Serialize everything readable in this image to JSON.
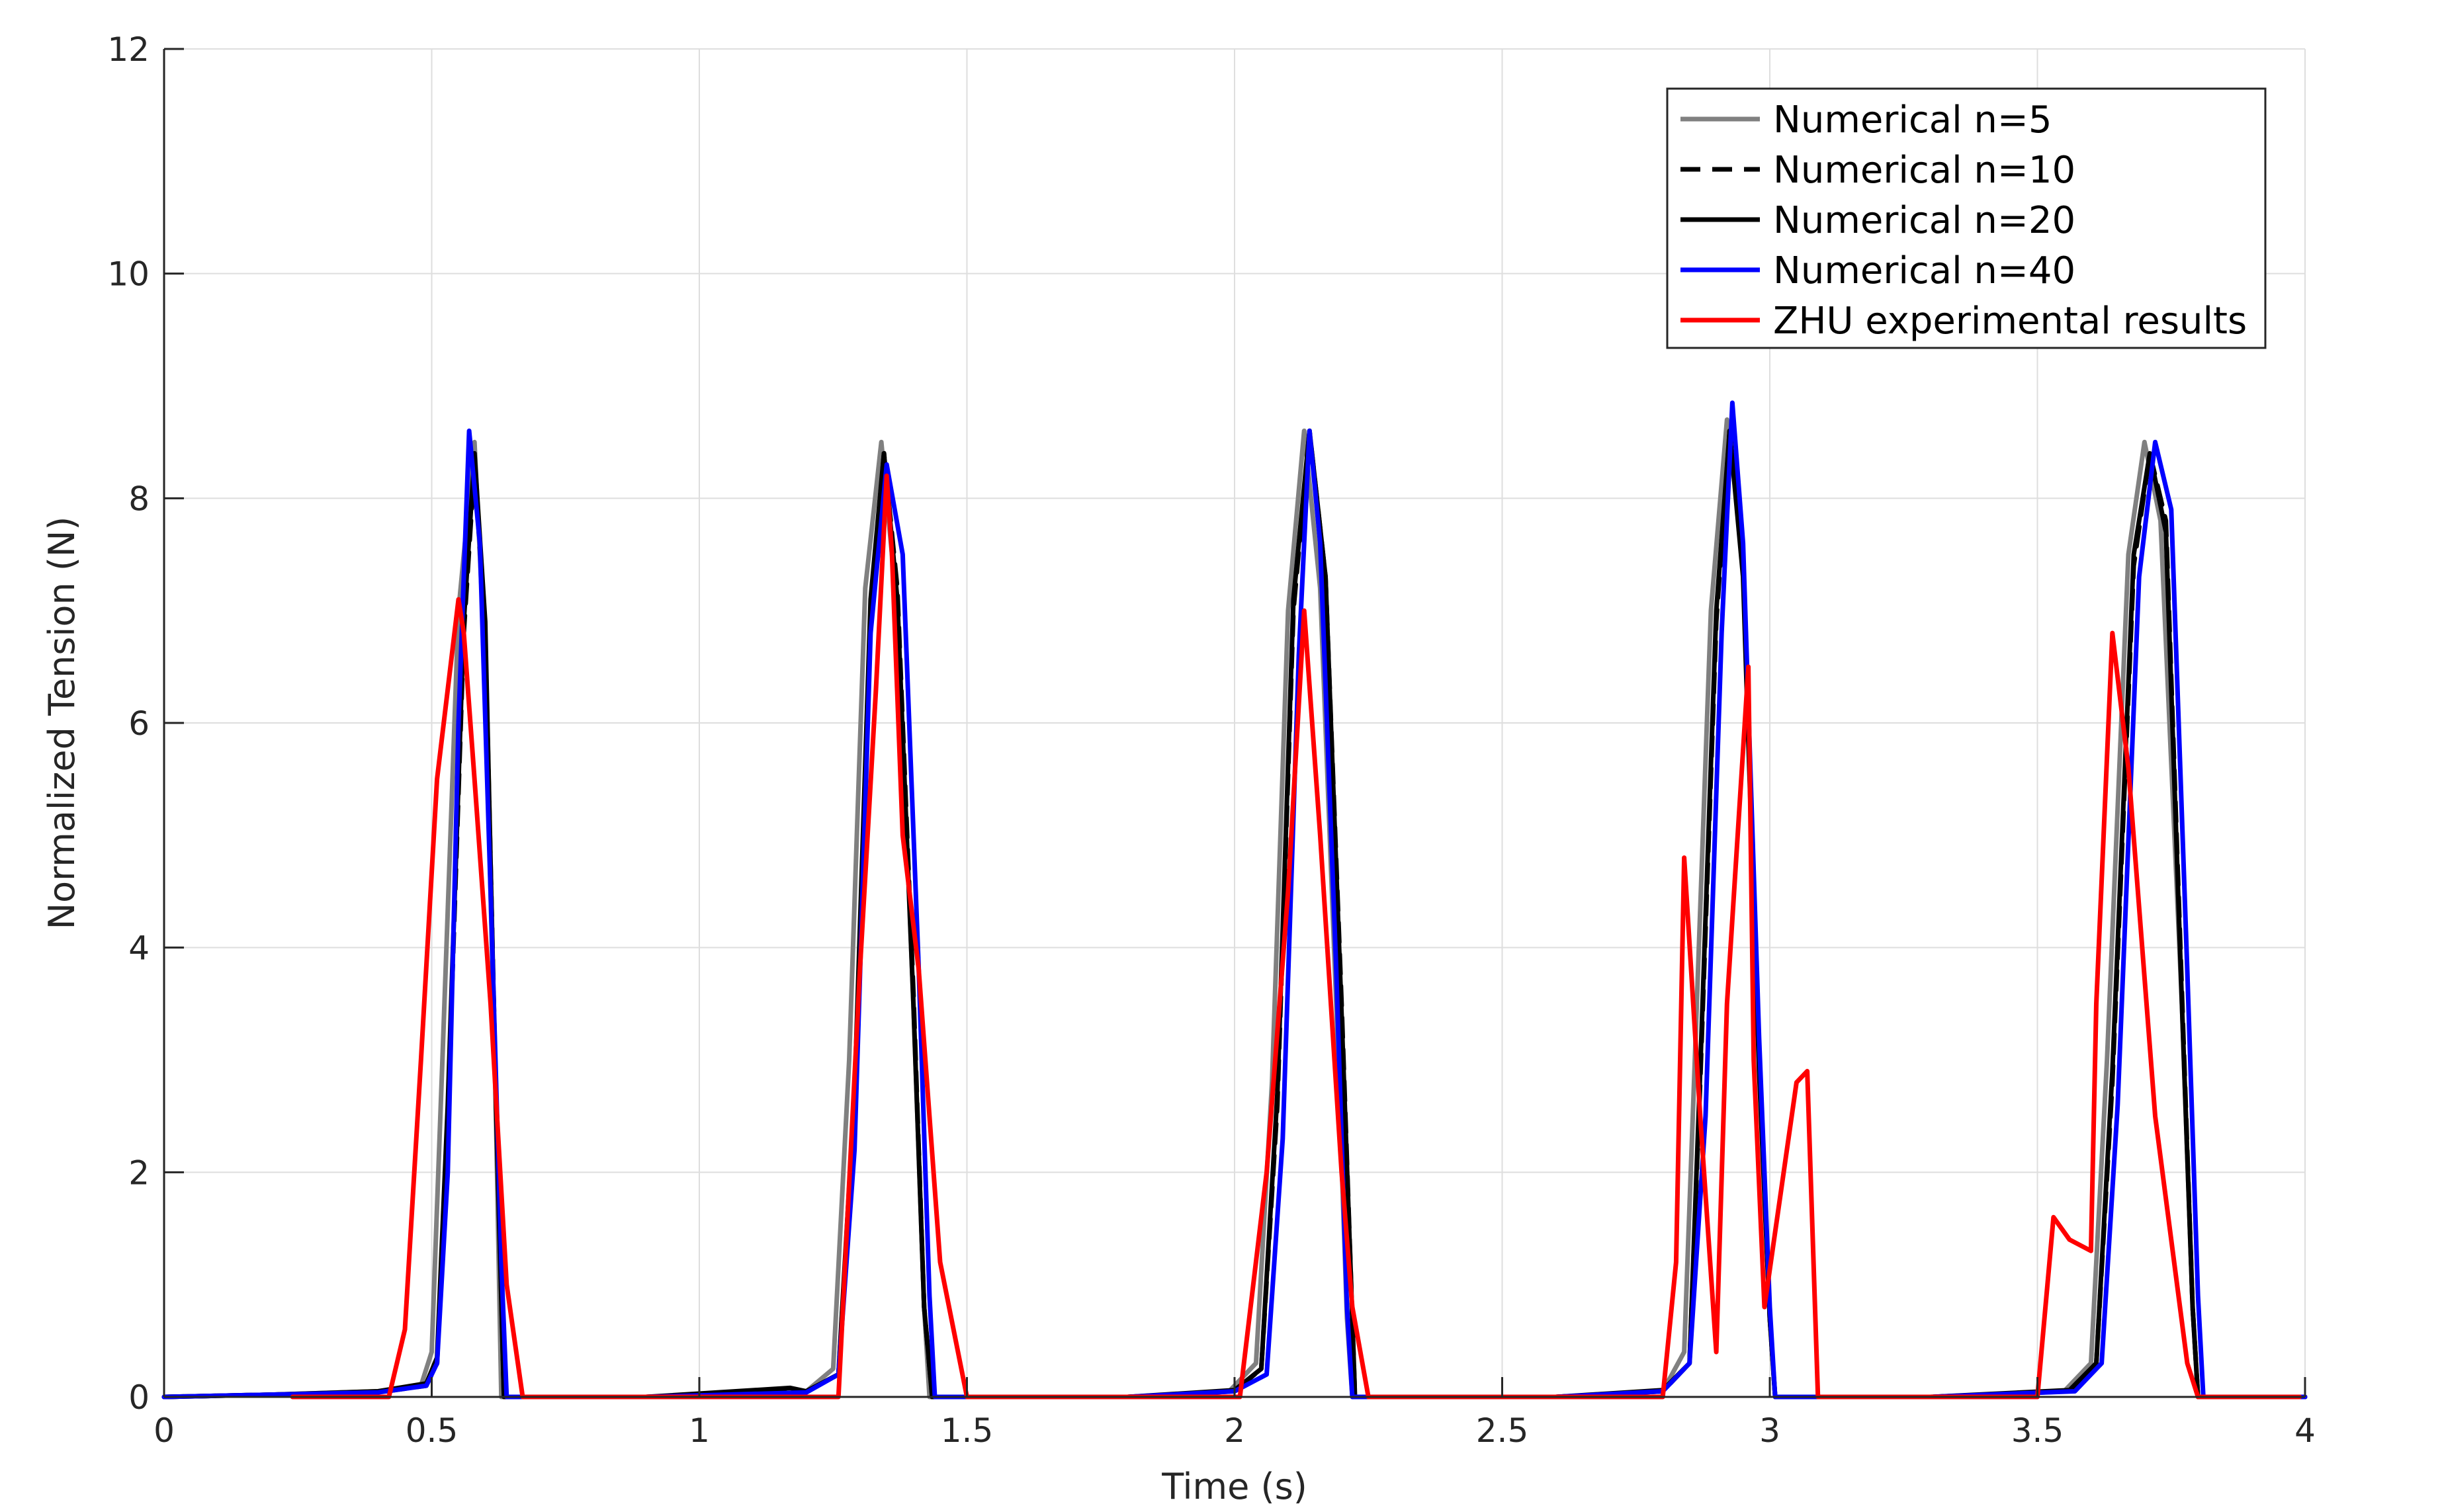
{
  "chart_data": {
    "type": "line",
    "title": "",
    "xlabel": "Time (s)",
    "ylabel": "Normalized Tension (N)",
    "xlim": [
      0,
      4
    ],
    "ylim": [
      0,
      12
    ],
    "xticks": [
      0,
      0.5,
      1,
      1.5,
      2,
      2.5,
      3,
      3.5,
      4
    ],
    "xtick_labels": [
      "0",
      "0.5",
      "1",
      "1.5",
      "2",
      "2.5",
      "3",
      "3.5",
      "4"
    ],
    "yticks": [
      0,
      2,
      4,
      6,
      8,
      10,
      12
    ],
    "ytick_labels": [
      "0",
      "2",
      "4",
      "6",
      "8",
      "10",
      "12"
    ],
    "grid": true,
    "legend_position": "top-right",
    "series": [
      {
        "name": "Numerical n=5",
        "color": "#808080",
        "dash": "solid",
        "x": [
          0,
          0.2,
          0.4,
          0.48,
          0.5,
          0.52,
          0.55,
          0.58,
          0.6,
          0.62,
          0.63,
          0.9,
          1.2,
          1.25,
          1.28,
          1.31,
          1.34,
          1.37,
          1.4,
          1.42,
          1.43,
          1.8,
          1.99,
          2.04,
          2.07,
          2.1,
          2.13,
          2.16,
          2.19,
          2.21,
          2.22,
          2.6,
          2.8,
          2.84,
          2.86,
          2.89,
          2.92,
          2.95,
          2.98,
          3.0,
          3.01,
          3.3,
          3.55,
          3.6,
          3.63,
          3.67,
          3.7,
          3.73,
          3.77,
          3.79,
          3.8,
          4.0
        ],
        "y": [
          0,
          0.02,
          0.05,
          0.1,
          0.4,
          3.0,
          7.0,
          8.5,
          6.5,
          2.5,
          0,
          0,
          0.05,
          0.25,
          3.0,
          7.2,
          8.5,
          7.0,
          3.5,
          0.8,
          0,
          0,
          0.05,
          0.3,
          2.8,
          7.0,
          8.6,
          7.2,
          3.5,
          0.7,
          0,
          0,
          0.05,
          0.4,
          3.0,
          7.0,
          8.7,
          7.5,
          3.0,
          0.7,
          0,
          0,
          0.05,
          0.3,
          3.0,
          7.5,
          8.5,
          7.8,
          3.5,
          0.8,
          0,
          0
        ]
      },
      {
        "name": "Numerical n=10",
        "color": "#000000",
        "dash": "dashed",
        "x": [
          0,
          0.2,
          0.4,
          0.49,
          0.51,
          0.53,
          0.56,
          0.58,
          0.6,
          0.62,
          0.635,
          0.9,
          1.2,
          1.26,
          1.29,
          1.32,
          1.345,
          1.37,
          1.4,
          1.42,
          1.435,
          1.8,
          2.0,
          2.05,
          2.08,
          2.11,
          2.14,
          2.17,
          2.2,
          2.22,
          2.225,
          2.6,
          2.8,
          2.85,
          2.87,
          2.9,
          2.925,
          2.95,
          2.98,
          3.0,
          3.01,
          3.3,
          3.56,
          3.61,
          3.64,
          3.68,
          3.71,
          3.74,
          3.77,
          3.79,
          3.8,
          4.0
        ],
        "y": [
          0,
          0.02,
          0.04,
          0.1,
          0.3,
          2.5,
          6.8,
          8.3,
          6.8,
          2.7,
          0,
          0,
          0.05,
          0.2,
          2.6,
          7.0,
          8.4,
          7.2,
          3.6,
          0.8,
          0,
          0,
          0.05,
          0.25,
          2.6,
          7.0,
          8.6,
          7.3,
          3.5,
          0.7,
          0,
          0,
          0.05,
          0.3,
          2.8,
          6.9,
          8.6,
          7.4,
          3.0,
          0.7,
          0,
          0,
          0.05,
          0.3,
          2.8,
          7.4,
          8.4,
          7.8,
          3.6,
          0.8,
          0,
          0
        ]
      },
      {
        "name": "Numerical n=20",
        "color": "#000000",
        "dash": "solid",
        "x": [
          0,
          0.2,
          0.4,
          0.49,
          0.51,
          0.53,
          0.56,
          0.58,
          0.6,
          0.62,
          0.635,
          0.9,
          1.17,
          1.2,
          1.26,
          1.29,
          1.32,
          1.345,
          1.37,
          1.4,
          1.42,
          1.435,
          1.8,
          2.0,
          2.05,
          2.08,
          2.11,
          2.14,
          2.17,
          2.2,
          2.22,
          2.225,
          2.6,
          2.8,
          2.85,
          2.87,
          2.9,
          2.925,
          2.95,
          2.98,
          3.0,
          3.01,
          3.3,
          3.56,
          3.61,
          3.64,
          3.68,
          3.71,
          3.74,
          3.77,
          3.79,
          3.8,
          4.0
        ],
        "y": [
          0,
          0.02,
          0.05,
          0.12,
          0.35,
          2.6,
          6.9,
          8.4,
          6.9,
          2.6,
          0,
          0,
          0.08,
          0.05,
          0.2,
          2.7,
          7.1,
          8.4,
          7.1,
          3.5,
          0.8,
          0,
          0,
          0.06,
          0.25,
          2.7,
          7.1,
          8.6,
          7.3,
          3.4,
          0.7,
          0,
          0,
          0.06,
          0.3,
          2.9,
          7.0,
          8.6,
          7.3,
          2.9,
          0.7,
          0,
          0,
          0.06,
          0.3,
          2.9,
          7.5,
          8.4,
          7.7,
          3.5,
          0.8,
          0,
          0
        ]
      },
      {
        "name": "Numerical n=40",
        "color": "#0000ff",
        "dash": "solid",
        "x": [
          0,
          0.2,
          0.4,
          0.49,
          0.51,
          0.53,
          0.55,
          0.57,
          0.59,
          0.61,
          0.63,
          0.64,
          0.9,
          1.2,
          1.26,
          1.29,
          1.32,
          1.35,
          1.38,
          1.41,
          1.43,
          1.44,
          1.8,
          2.0,
          2.06,
          2.09,
          2.12,
          2.14,
          2.16,
          2.19,
          2.21,
          2.22,
          2.6,
          2.8,
          2.85,
          2.88,
          2.91,
          2.93,
          2.95,
          2.98,
          3.0,
          3.01,
          3.3,
          3.57,
          3.62,
          3.65,
          3.69,
          3.72,
          3.75,
          3.78,
          3.8,
          3.81,
          4.0
        ],
        "y": [
          0,
          0.02,
          0.04,
          0.1,
          0.3,
          2.0,
          6.0,
          8.6,
          7.6,
          4.5,
          1.2,
          0,
          0,
          0.04,
          0.2,
          2.2,
          6.8,
          8.3,
          7.5,
          3.8,
          0.9,
          0,
          0,
          0.05,
          0.2,
          2.3,
          6.6,
          8.6,
          7.6,
          3.8,
          0.8,
          0,
          0,
          0.05,
          0.3,
          2.5,
          6.8,
          8.85,
          7.6,
          3.2,
          0.8,
          0,
          0,
          0.05,
          0.3,
          2.6,
          7.3,
          8.5,
          7.9,
          3.8,
          0.9,
          0,
          0
        ]
      },
      {
        "name": "ZHU experimental results",
        "color": "#ff0000",
        "dash": "solid",
        "x": [
          0.24,
          0.42,
          0.45,
          0.48,
          0.51,
          0.55,
          0.56,
          0.58,
          0.61,
          0.64,
          0.67,
          1.26,
          1.3,
          1.33,
          1.35,
          1.36,
          1.38,
          1.41,
          1.45,
          1.5,
          2.01,
          2.06,
          2.1,
          2.13,
          2.16,
          2.2,
          2.22,
          2.25,
          2.8,
          2.825,
          2.84,
          2.87,
          2.9,
          2.92,
          2.96,
          2.97,
          2.99,
          3.05,
          3.07,
          3.09,
          3.5,
          3.53,
          3.56,
          3.6,
          3.61,
          3.64,
          3.67,
          3.72,
          3.78,
          3.8,
          3.99
        ],
        "y": [
          0,
          0,
          0.6,
          3.0,
          5.5,
          7.1,
          6.8,
          5.5,
          3.5,
          1.0,
          0,
          0,
          3.8,
          6.3,
          8.2,
          7.5,
          5.0,
          3.8,
          1.2,
          0,
          0,
          2.0,
          4.5,
          7.0,
          5.0,
          2.0,
          0.8,
          0,
          0,
          1.2,
          4.8,
          2.5,
          0.4,
          3.5,
          6.5,
          3.0,
          0.8,
          2.8,
          2.9,
          0,
          0,
          1.6,
          1.4,
          1.3,
          3.5,
          6.8,
          5.6,
          2.5,
          0.3,
          0,
          0
        ]
      }
    ]
  }
}
